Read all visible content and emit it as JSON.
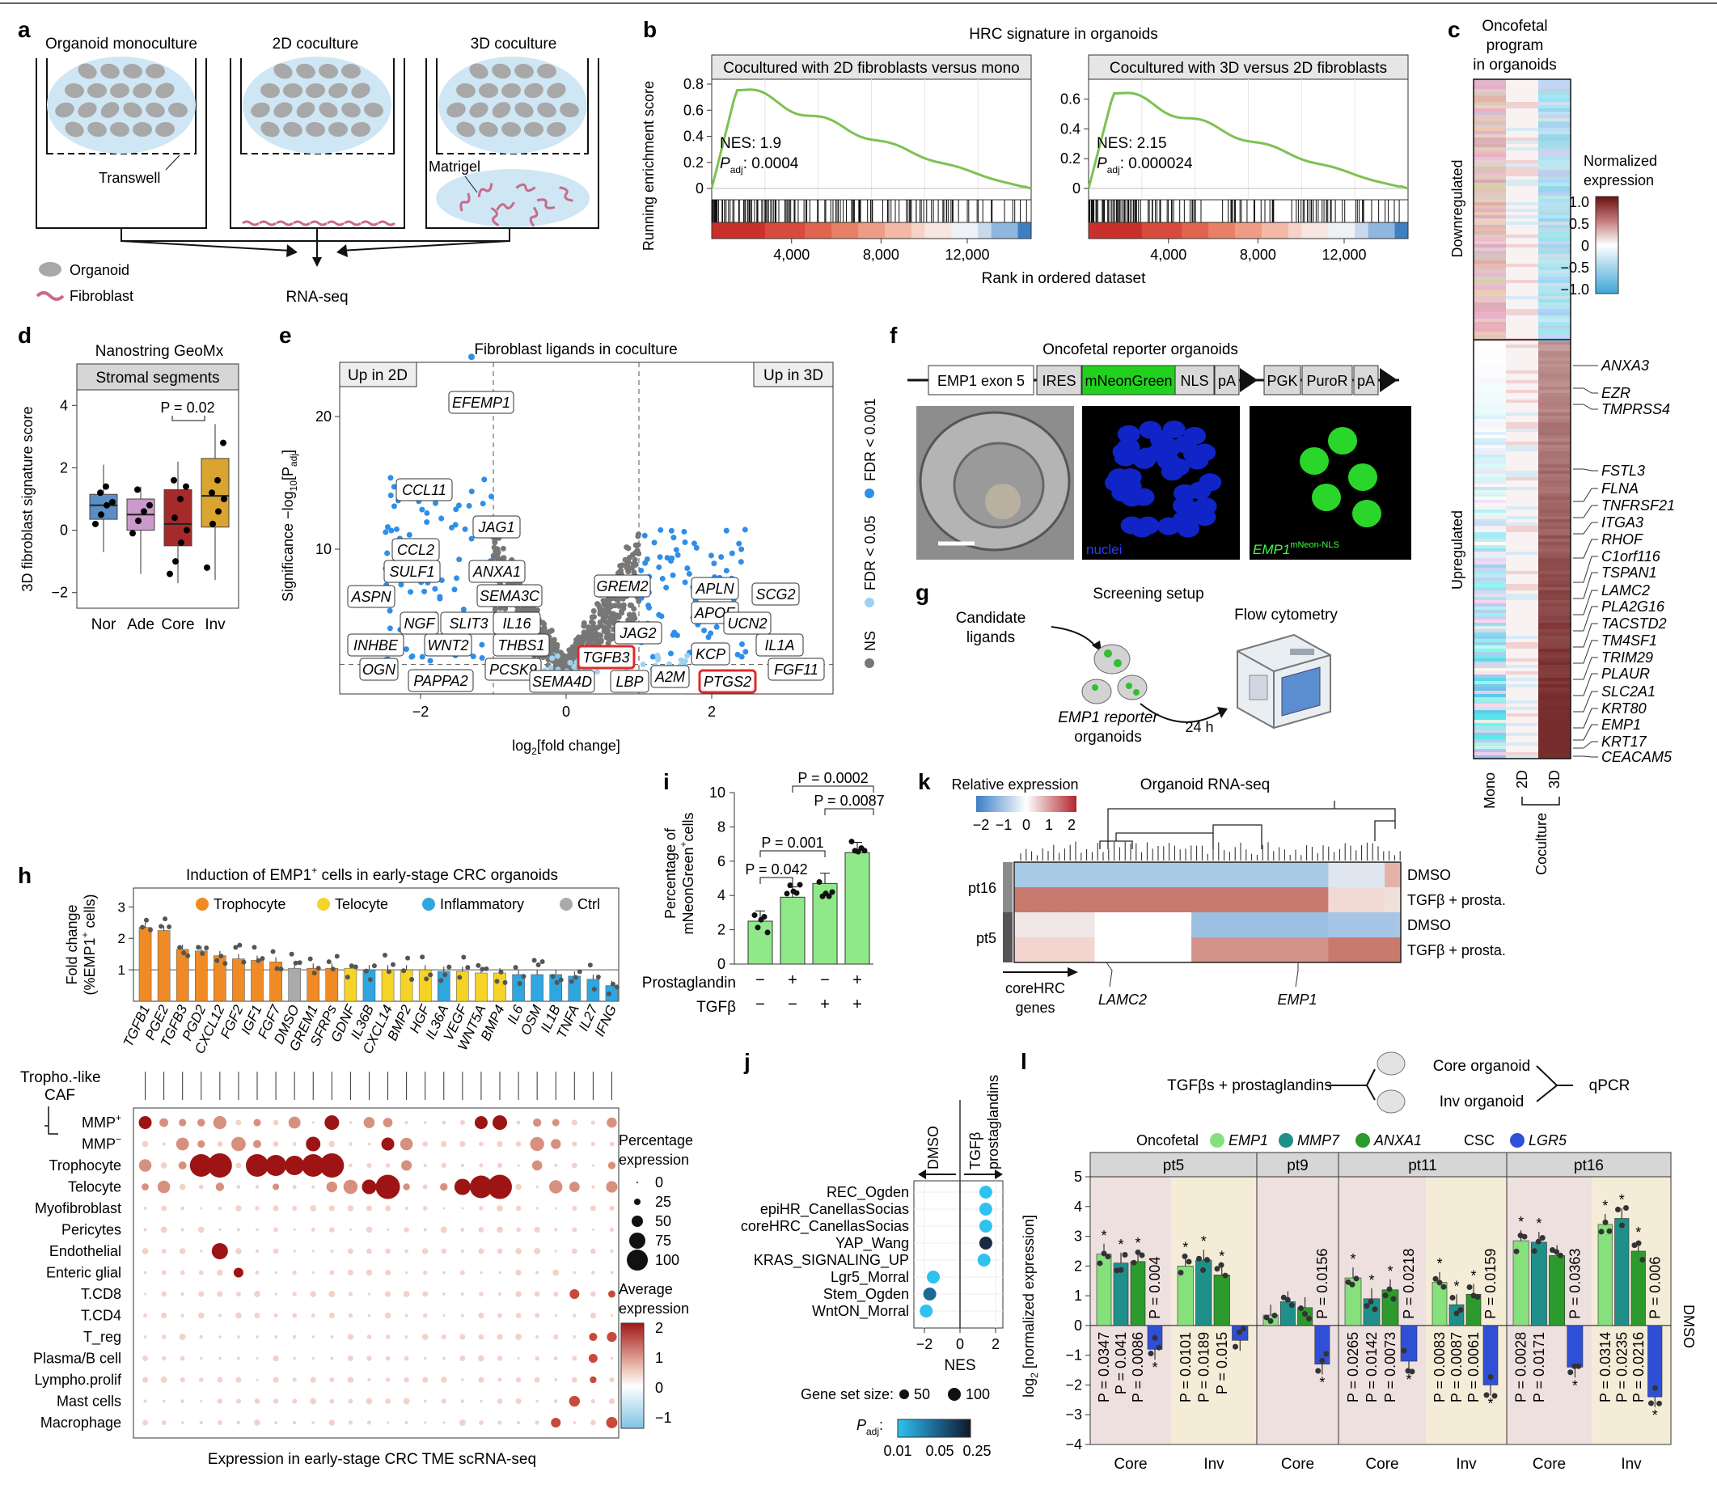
{
  "panel_letters": {
    "a": "a",
    "b": "b",
    "c": "c",
    "d": "d",
    "e": "e",
    "f": "f",
    "g": "g",
    "h": "h",
    "i": "i",
    "j": "j",
    "k": "k",
    "l": "l"
  },
  "panel_a": {
    "titles": [
      "Organoid monoculture",
      "2D coculture",
      "3D coculture"
    ],
    "transwell": "Transwell",
    "matrigel": "Matrigel",
    "legend_organoid": "Organoid",
    "legend_fibroblast": "Fibroblast",
    "rnaseq": "RNA-seq"
  },
  "panel_b": {
    "title": "HRC signature in organoids",
    "ylabel": "Running enrichment score",
    "xlabel": "Rank in ordered dataset",
    "plots": [
      {
        "header": "Cocultured with 2D fibroblasts versus mono",
        "nes": "NES: 1.9",
        "padj_label": "P",
        "padj_sub": "adj",
        "padj_val": ": 0.0004",
        "yticks": [
          "0.8",
          "0.6",
          "0.4",
          "0.2",
          "0"
        ],
        "ymax": 0.8,
        "peak": 0.78
      },
      {
        "header": "Cocultured with 3D versus 2D fibroblasts",
        "nes": "NES: 2.15",
        "padj_label": "P",
        "padj_sub": "adj",
        "padj_val": ": 0.000024",
        "yticks": [
          "0.6",
          "0.4",
          "0.2",
          "0"
        ],
        "ymax": 0.7,
        "peak": 0.66
      }
    ],
    "xticks": [
      "4,000",
      "8,000",
      "12,000"
    ]
  },
  "panel_c": {
    "title": [
      "Oncofetal",
      "program",
      "in organoids"
    ],
    "legend_title": [
      "Normalized",
      "expression"
    ],
    "legend_ticks": [
      "1.0",
      "0.5",
      "0",
      "−0.5",
      "−1.0"
    ],
    "downregulated": "Downregulated",
    "upregulated": "Upregulated",
    "cols": [
      "Mono",
      "2D",
      "3D"
    ],
    "coculture": "Coculture",
    "genes": [
      "ANXA3",
      "EZR",
      "TMPRSS4",
      "FSTL3",
      "FLNA",
      "TNFRSF21",
      "ITGA3",
      "RHOF",
      "C1orf116",
      "TSPAN1",
      "LAMC2",
      "PLA2G16",
      "TACSTD2",
      "TM4SF1",
      "TRIM29",
      "PLAUR",
      "SLC2A1",
      "KRT80",
      "EMP1",
      "KRT17",
      "CEACAM5"
    ]
  },
  "panel_d": {
    "title": "Nanostring GeoMx",
    "strip": "Stromal segments",
    "ylabel": "3D fibroblast signature score",
    "pval": "P = 0.02",
    "yticks": [
      "4",
      "2",
      "0",
      "−2"
    ],
    "chart_data": {
      "type": "box",
      "categories": [
        "Nor",
        "Ade",
        "Core",
        "Inv"
      ],
      "colors": [
        "#5b8ec4",
        "#cc99cc",
        "#a52a2a",
        "#d9a530"
      ],
      "box": [
        [
          0.35,
          0.8,
          1.15
        ],
        [
          0.0,
          0.5,
          1.0
        ],
        [
          -0.5,
          0.2,
          1.3
        ],
        [
          0.1,
          1.1,
          2.3
        ]
      ],
      "whisker": [
        [
          -0.7,
          2.1
        ],
        [
          -1.4,
          1.4
        ],
        [
          -1.7,
          2.2
        ],
        [
          -1.6,
          3.4
        ]
      ],
      "points": [
        [
          0.2,
          0.5,
          0.8,
          0.9,
          1.2,
          1.4
        ],
        [
          -0.1,
          0.3,
          0.6,
          0.8,
          1.3
        ],
        [
          -1.4,
          -1.0,
          -0.4,
          0.0,
          0.4,
          1.0,
          1.4,
          1.6
        ],
        [
          -1.2,
          0.2,
          0.6,
          1.0,
          1.2,
          1.6,
          2.8
        ]
      ],
      "ylim": [
        -2.5,
        4.5
      ]
    }
  },
  "panel_e": {
    "title": "Fibroblast ligands in coculture",
    "ylabel_main": "Significance −log",
    "ylabel_sub": "10",
    "ylabel_P": "[P",
    "ylabel_adj": "adj",
    "ylabel_end": "]",
    "xlabel_main": "log",
    "xlabel_sub": "2",
    "xlabel_end": "[fold change]",
    "up2d": "Up in 2D",
    "up3d": "Up in 3D",
    "legend": [
      "FDR < 0.001",
      "FDR < 0.05",
      "NS"
    ],
    "xticks": [
      "−2",
      "0",
      "2"
    ],
    "yticks": [
      "20",
      "10"
    ],
    "labels_left": [
      "EFEMP1",
      "CCL11",
      "JAG1",
      "CCL2",
      "SULF1",
      "ANXA1",
      "SEMA3C",
      "ASPN",
      "NGF",
      "SLIT3",
      "IL16",
      "INHBE",
      "WNT2",
      "THBS1",
      "OGN",
      "PAPPA2",
      "PCSK9"
    ],
    "labels_right": [
      "GREM2",
      "APLN",
      "SCG2",
      "APOE",
      "UCN2",
      "JAG2",
      "IL1A",
      "TGFB3",
      "KCP",
      "SEMA4D",
      "LBP",
      "A2M",
      "PTGS2",
      "FGF11"
    ]
  },
  "panel_f": {
    "title": "Oncofetal reporter organoids",
    "construct": [
      "EMP1 exon 5",
      "IRES",
      "mNeonGreen",
      "NLS",
      "pA",
      "PGK",
      "PuroR",
      "pA"
    ],
    "nuclei": "nuclei",
    "emp1": "EMP1",
    "emp1_sup": "mNeon-NLS"
  },
  "panel_g": {
    "title": "Screening setup",
    "candidate": [
      "Candidate",
      "ligands"
    ],
    "flow": "Flow cytometry",
    "reporter": [
      "EMP1 reporter",
      "organoids"
    ],
    "time": "24 h"
  },
  "panel_h": {
    "title": "Induction of EMP1",
    "title_sup": "+",
    "title_end": " cells in early-stage CRC organoids",
    "ylabel": "Fold change",
    "ylabel2": "(%EMP1",
    "ylabel2_end": " cells)",
    "legend": [
      {
        "label": "Trophocyte",
        "color": "#f08a24"
      },
      {
        "label": "Telocyte",
        "color": "#f5d327"
      },
      {
        "label": "Inflammatory",
        "color": "#2ea6df"
      },
      {
        "label": "Ctrl",
        "color": "#aaaaaa"
      }
    ],
    "chart_data": {
      "type": "bar",
      "categories": [
        "TGFB1",
        "PGE2",
        "TGFB3",
        "PGD2",
        "CXCL12",
        "FGF2",
        "IGF1",
        "FGF7",
        "DMSO",
        "GREM1",
        "SFRPs",
        "GDNF",
        "IL36B",
        "CXCL14",
        "BMP2",
        "HGF",
        "IL36A",
        "VEGF",
        "WNT5A",
        "BMP4",
        "IL6",
        "OSM",
        "IL1B",
        "TNFA",
        "IL27",
        "IFNG"
      ],
      "values": [
        2.35,
        2.25,
        1.65,
        1.6,
        1.45,
        1.35,
        1.3,
        1.25,
        1.05,
        1.05,
        1.05,
        1.05,
        1.0,
        1.0,
        1.0,
        1.0,
        0.95,
        0.95,
        0.9,
        0.9,
        0.85,
        0.85,
        0.85,
        0.8,
        0.7,
        0.5
      ],
      "groups": [
        "T",
        "T",
        "T",
        "T",
        "T",
        "T",
        "T",
        "T",
        "C",
        "T",
        "T",
        "L",
        "I",
        "L",
        "L",
        "L",
        "I",
        "L",
        "L",
        "L",
        "I",
        "I",
        "I",
        "I",
        "I",
        "I"
      ],
      "ylabel": "Fold change (%EMP1+ cells)"
    },
    "dot_rows": [
      "MMP+",
      "MMP−",
      "Trophocyte",
      "Telocyte",
      "Myofibroblast",
      "Pericytes",
      "Endothelial",
      "Enteric glial",
      "T.CD8",
      "T.CD4",
      "T_reg",
      "Plasma/B cell",
      "Lympho.prolif",
      "Mast cells",
      "Macrophage"
    ],
    "trophocaf": [
      "Tropho.-like",
      "CAF"
    ],
    "mmp_plus": "MMP",
    "mmp_minus": "MMP",
    "size_legend_title": [
      "Percentage",
      "expression"
    ],
    "size_legend": [
      "0",
      "25",
      "50",
      "75",
      "100"
    ],
    "color_legend_title": [
      "Average",
      "expression"
    ],
    "color_legend": [
      "2",
      "1",
      "0",
      "−1"
    ],
    "xlabel": "Expression in early-stage CRC TME scRNA-seq"
  },
  "panel_i": {
    "ylabel": [
      "Percentage of",
      "mNeonGreen",
      "cells"
    ],
    "yticks": [
      "10",
      "8",
      "6",
      "4",
      "2",
      "0"
    ],
    "row1": "Prostaglandin",
    "row2": "TGFβ",
    "row1_vals": [
      "−",
      "+",
      "−",
      "+"
    ],
    "row2_vals": [
      "−",
      "−",
      "+",
      "+"
    ],
    "pvals": [
      "P = 0.0002",
      "P = 0.0087",
      "P = 0.001",
      "P = 0.042"
    ],
    "chart_data": {
      "type": "bar",
      "categories": [
        "−/−",
        "+/−",
        "−/+",
        "+/+"
      ],
      "values": [
        2.5,
        3.9,
        4.7,
        6.5
      ],
      "ylim": [
        0,
        10
      ]
    }
  },
  "panel_j": {
    "dmso": "DMSO",
    "tgf": [
      "TGFβ",
      "prostaglandins"
    ],
    "xlabel": "NES",
    "xticks": [
      "−2",
      "0",
      "2"
    ],
    "size_title": "Gene set size:",
    "size_vals": [
      "50",
      "100"
    ],
    "padj_title": "P",
    "padj_sub": "adj",
    "padj_ticks": [
      "0.01",
      "0.05",
      "0.25"
    ],
    "chart_data": {
      "type": "scatter",
      "categories": [
        "REC_Ogden",
        "epiHR_CanellasSocias",
        "coreHRC_CanellasSocias",
        "YAP_Wang",
        "KRAS_SIGNALING_UP",
        "Lgr5_Morral",
        "Stem_Ogden",
        "WntON_Morral"
      ],
      "values": [
        1.45,
        1.45,
        1.45,
        1.45,
        1.35,
        -1.5,
        -1.7,
        -1.9
      ]
    }
  },
  "panel_k": {
    "legend_title": "Relative expression",
    "legend_ticks": [
      "−2",
      "−1",
      "0",
      "1",
      "2"
    ],
    "title": "Organoid RNA-seq",
    "rows": [
      "DMSO",
      "TGFβ + prosta.",
      "DMSO",
      "TGFβ + prosta."
    ],
    "pts": [
      "pt16",
      "pt5"
    ],
    "corehrc": [
      "coreHRC",
      "genes"
    ],
    "genes": [
      "LAMC2",
      "EMP1"
    ]
  },
  "panel_l": {
    "scheme_left": "TGFβs + prostaglandins",
    "scheme_core": "Core organoid",
    "scheme_inv": "Inv organoid",
    "scheme_right": "qPCR",
    "oncofetal": "Oncofetal",
    "csc": "CSC",
    "genes": [
      {
        "name": "EMP1",
        "color": "#86e07c"
      },
      {
        "name": "MMP7",
        "color": "#1f8f8a"
      },
      {
        "name": "ANXA1",
        "color": "#2c9a2c"
      },
      {
        "name": "LGR5",
        "color": "#2f4fd6"
      }
    ],
    "ylabel": "log",
    "ylabel_sub": "2",
    "ylabel_end": " [normalized expression]",
    "yticks": [
      "5",
      "4",
      "3",
      "2",
      "1",
      "0",
      "−1",
      "−2",
      "−3",
      "−4"
    ],
    "dmso": "DMSO",
    "patients": [
      "pt5",
      "pt9",
      "pt11",
      "pt16"
    ],
    "xlabels": [
      "Core",
      "Inv",
      "Core",
      "Core",
      "Inv",
      "Core",
      "Inv"
    ],
    "chart_data": {
      "type": "bar",
      "groups": [
        "pt5 Core",
        "pt5 Inv",
        "pt9 Core",
        "pt11 Core",
        "pt11 Inv",
        "pt16 Core",
        "pt16 Inv"
      ],
      "series": [
        {
          "name": "EMP1",
          "values": [
            2.4,
            2.0,
            0.35,
            1.6,
            1.45,
            2.85,
            3.4
          ]
        },
        {
          "name": "MMP7",
          "values": [
            2.1,
            2.2,
            0.8,
            0.9,
            0.7,
            2.8,
            3.6
          ]
        },
        {
          "name": "ANXA1",
          "values": [
            2.15,
            1.7,
            0.6,
            1.2,
            1.05,
            2.35,
            2.5
          ]
        },
        {
          "name": "LGR5",
          "values": [
            -0.8,
            -0.5,
            -1.3,
            -1.2,
            -2.0,
            -1.4,
            -2.4
          ]
        }
      ],
      "pvalues": [
        [
          "P = 0.0347",
          "P = 0.041",
          "P = 0.0086",
          "P = 0.004"
        ],
        [
          "P = 0.0101",
          "P = 0.0189",
          "P = 0.015",
          ""
        ],
        [
          "",
          "",
          "",
          "P = 0.0156"
        ],
        [
          "P = 0.0265",
          "P = 0.0142",
          "P = 0.0073",
          "P = 0.0218"
        ],
        [
          "P = 0.0083",
          "P = 0.0087",
          "P = 0.0061",
          "P = 0.0159"
        ],
        [
          "P = 0.0028",
          "P = 0.0171",
          "",
          "P = 0.0363"
        ],
        [
          "P = 0.0314",
          "P = 0.0235",
          "P = 0.0216",
          "P = 0.006"
        ]
      ],
      "ylim": [
        -4,
        5
      ]
    }
  }
}
